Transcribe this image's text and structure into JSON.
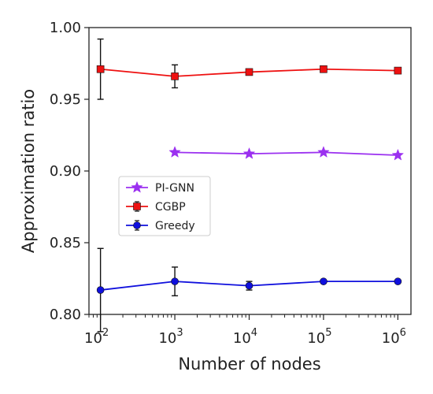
{
  "chart_data": {
    "type": "line",
    "xlabel": "Number of nodes",
    "ylabel": "Approximation ratio",
    "xscale": "log",
    "xlim": [
      70,
      1500000
    ],
    "ylim": [
      0.8,
      1.0
    ],
    "x_ticks": [
      {
        "value": 100,
        "base": "10",
        "exp": "2"
      },
      {
        "value": 1000,
        "base": "10",
        "exp": "3"
      },
      {
        "value": 10000,
        "base": "10",
        "exp": "4"
      },
      {
        "value": 100000,
        "base": "10",
        "exp": "5"
      },
      {
        "value": 1000000,
        "base": "10",
        "exp": "6"
      }
    ],
    "y_ticks": [
      "0.80",
      "0.85",
      "0.90",
      "0.95",
      "1.00"
    ],
    "grid": false,
    "legend_position": "center-left",
    "series": [
      {
        "name": "PI-GNN",
        "color": "#9b30f0",
        "marker": "star",
        "x": [
          1000,
          10000,
          100000,
          1000000
        ],
        "y": [
          0.913,
          0.912,
          0.913,
          0.911
        ],
        "err": [
          0,
          0,
          0,
          0
        ]
      },
      {
        "name": "CGBP",
        "color": "#ee1111",
        "marker": "square",
        "x": [
          100,
          1000,
          10000,
          100000,
          1000000
        ],
        "y": [
          0.971,
          0.966,
          0.969,
          0.971,
          0.97
        ],
        "err": [
          0.021,
          0.008,
          0.002,
          0.002,
          0.001
        ]
      },
      {
        "name": "Greedy",
        "color": "#1010dd",
        "marker": "circle",
        "x": [
          100,
          1000,
          10000,
          100000,
          1000000
        ],
        "y": [
          0.817,
          0.823,
          0.82,
          0.823,
          0.823
        ],
        "err": [
          0.029,
          0.01,
          0.003,
          0.0007,
          0.0005
        ]
      }
    ]
  }
}
